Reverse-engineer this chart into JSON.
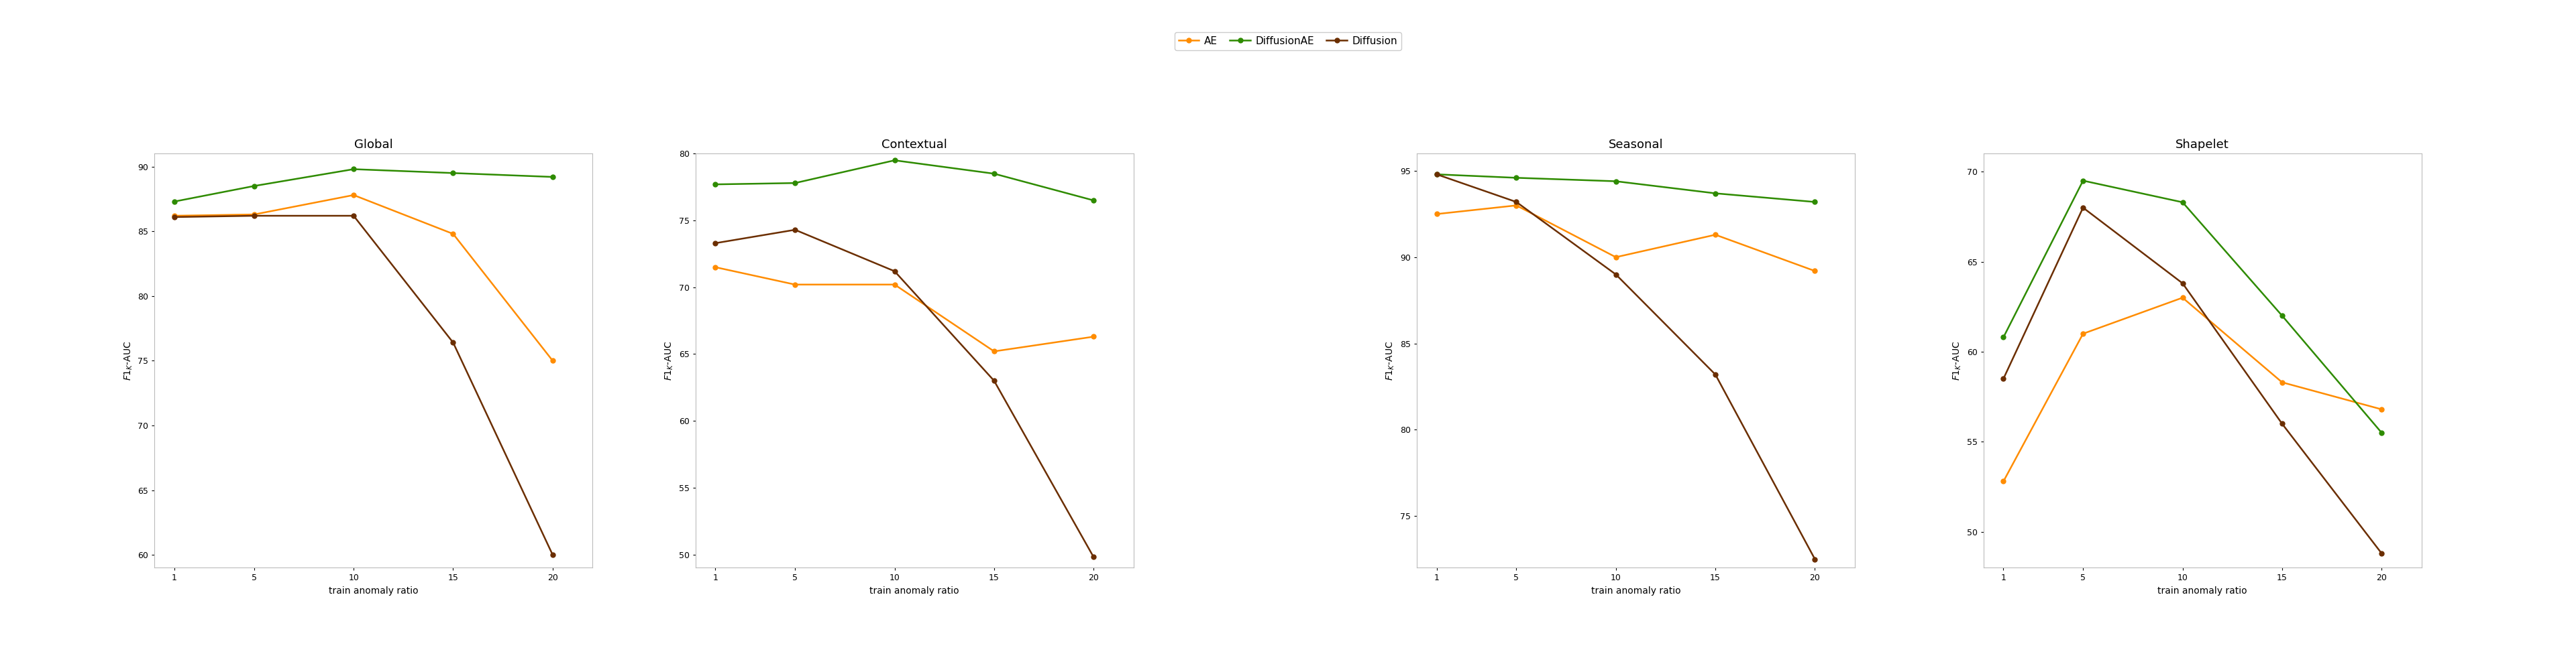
{
  "x": [
    1,
    5,
    10,
    15,
    20
  ],
  "subplots": [
    {
      "title": "Global",
      "ylim": [
        59,
        91
      ],
      "yticks": [
        60,
        65,
        70,
        75,
        80,
        85,
        90
      ],
      "series": {
        "AE": [
          86.2,
          86.3,
          87.8,
          84.8,
          75.0
        ],
        "DiffusionAE": [
          87.3,
          88.5,
          89.8,
          89.5,
          89.2
        ],
        "Diffusion": [
          86.1,
          86.2,
          86.2,
          76.4,
          60.0
        ]
      }
    },
    {
      "title": "Contextual",
      "ylim": [
        49,
        80
      ],
      "yticks": [
        50,
        55,
        60,
        65,
        70,
        75,
        80
      ],
      "series": {
        "AE": [
          71.5,
          70.2,
          70.2,
          65.2,
          66.3
        ],
        "DiffusionAE": [
          77.7,
          77.8,
          79.5,
          78.5,
          76.5
        ],
        "Diffusion": [
          73.3,
          74.3,
          71.2,
          63.0,
          49.8
        ]
      }
    },
    {
      "title": "Seasonal",
      "ylim": [
        72,
        96
      ],
      "yticks": [
        75,
        80,
        85,
        90,
        95
      ],
      "series": {
        "AE": [
          92.5,
          93.0,
          90.0,
          91.3,
          89.2
        ],
        "DiffusionAE": [
          94.8,
          94.6,
          94.4,
          93.7,
          93.2
        ],
        "Diffusion": [
          94.8,
          93.2,
          89.0,
          83.2,
          72.5
        ]
      }
    },
    {
      "title": "Shapelet",
      "ylim": [
        48,
        71
      ],
      "yticks": [
        50,
        55,
        60,
        65,
        70
      ],
      "series": {
        "AE": [
          52.8,
          61.0,
          63.0,
          58.3,
          56.8
        ],
        "DiffusionAE": [
          60.8,
          69.5,
          68.3,
          62.0,
          55.5
        ],
        "Diffusion": [
          58.5,
          68.0,
          63.8,
          56.0,
          48.8
        ]
      }
    }
  ],
  "colors": {
    "AE": "#ff8c00",
    "DiffusionAE": "#2e8b00",
    "Diffusion": "#6b2e00"
  },
  "marker": "o",
  "linewidth": 1.8,
  "markersize": 5,
  "xlabel": "train anomaly ratio",
  "ylabel": "$F1_{K}$-AUC",
  "background_color": "#ffffff",
  "figure_facecolor": "#ffffff"
}
